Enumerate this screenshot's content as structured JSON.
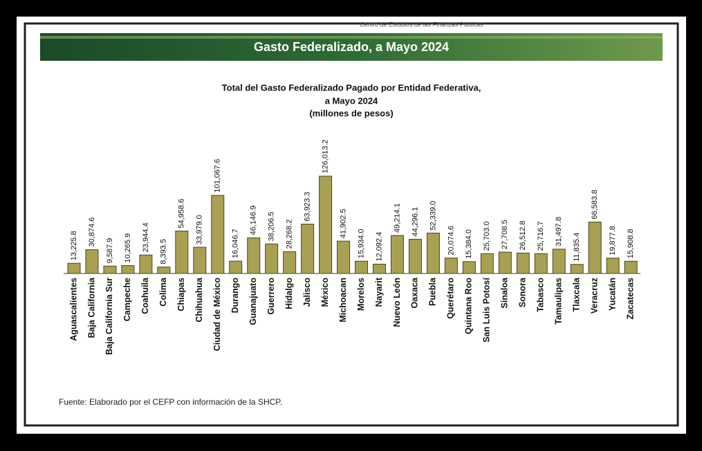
{
  "header": {
    "org": "Centro de Estudios de las Finanzas Públicas",
    "title": "Gasto Federalizado, a Mayo 2024"
  },
  "chart_data": {
    "type": "bar",
    "title": [
      "Total del Gasto Federalizado Pagado por Entidad Federativa,",
      "a Mayo 2024",
      "(millones de pesos)"
    ],
    "categories": [
      "Aguascalientes",
      "Baja California",
      "Baja California Sur",
      "Campeche",
      "Coahuila",
      "Colima",
      "Chiapas",
      "Chihuahua",
      "Ciudad de México",
      "Durango",
      "Guanajuato",
      "Guerrero",
      "Hidalgo",
      "Jalisco",
      "México",
      "Michoacan",
      "Morelos",
      "Nayarit",
      "Nuevo León",
      "Oaxaca",
      "Puebla",
      "Querétaro",
      "Quintana Roo",
      "San Luis Potosí",
      "Sinaloa",
      "Sonora",
      "Tabasco",
      "Tamaulipas",
      "Tlaxcala",
      "Veracruz",
      "Yucatán",
      "Zacatecas"
    ],
    "values": [
      13225.8,
      30874.6,
      9587.9,
      10265.9,
      23944.4,
      8393.5,
      54958.6,
      33979.0,
      101067.6,
      16046.7,
      46146.9,
      38206.5,
      28268.2,
      63923.3,
      126013.2,
      41902.5,
      15934.0,
      12092.4,
      49214.1,
      44296.1,
      52339.0,
      20074.6,
      15384.0,
      25703.0,
      27708.5,
      26512.8,
      25716.7,
      31497.8,
      11835.4,
      66583.8,
      19877.8,
      15908.8
    ],
    "value_labels": [
      "13,225.8",
      "30,874.6",
      "9,587.9",
      "10,265.9",
      "23,944.4",
      "8,393.5",
      "54,958.6",
      "33,979.0",
      "101,067.6",
      "16,046.7",
      "46,146.9",
      "38,206.5",
      "28,268.2",
      "63,923.3",
      "126,013.2",
      "41,902.5",
      "15,934.0",
      "12,092.4",
      "49,214.1",
      "44,296.1",
      "52,339.0",
      "20,074.6",
      "15,384.0",
      "25,703.0",
      "27,708.5",
      "26,512.8",
      "25,716.7",
      "31,497.8",
      "11,835.4",
      "66,583.8",
      "19,877.8",
      "15,908.8"
    ],
    "color": "#a8a052",
    "source": "Fuente: Elaborado por el CEFP con información de la SHCP."
  }
}
